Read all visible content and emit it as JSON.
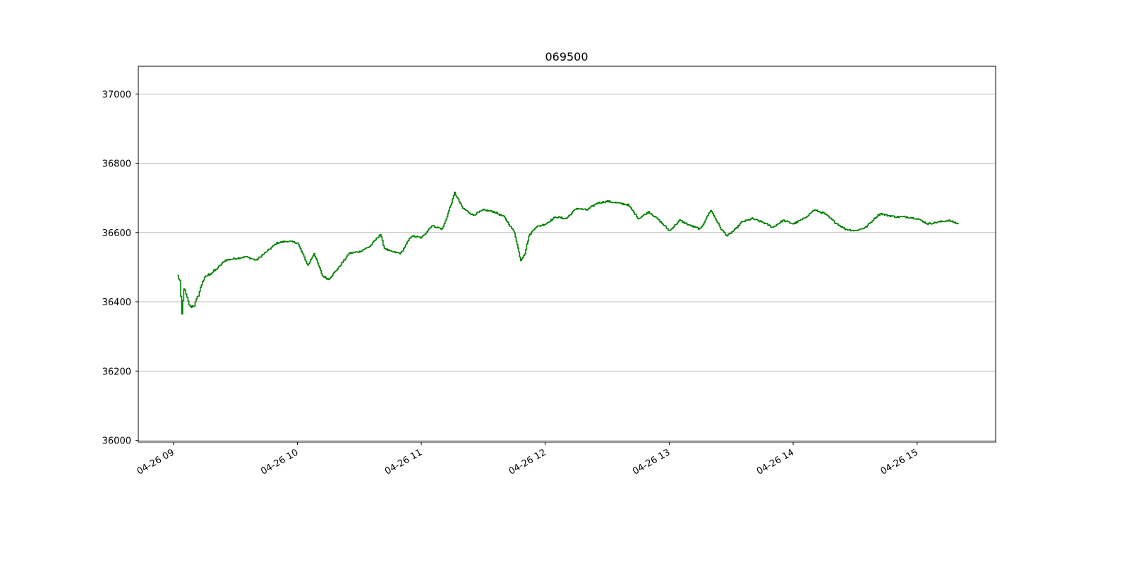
{
  "chart_data": {
    "type": "line",
    "title": "069500",
    "xlabel": "",
    "ylabel": "",
    "x_ticks": [
      "04-26 09",
      "04-26 10",
      "04-26 11",
      "04-26 12",
      "04-26 13",
      "04-26 14",
      "04-26 15"
    ],
    "y_ticks": [
      "36000",
      "36200",
      "36400",
      "36600",
      "36800",
      "37000"
    ],
    "xlim": [
      "04-26 08:43",
      "04-26 15:38"
    ],
    "ylim": [
      35995,
      37080
    ],
    "grid": "horizontal",
    "line_color": "#008000",
    "series": [
      {
        "x": [
          "09:02",
          "09:03",
          "09:04",
          "09:05",
          "09:06",
          "09:07",
          "09:08",
          "09:10",
          "09:12",
          "09:14",
          "09:16",
          "09:20",
          "09:25",
          "09:30",
          "09:35",
          "09:40",
          "09:45",
          "09:50",
          "09:55",
          "10:00",
          "10:05",
          "10:08",
          "10:12",
          "10:15",
          "10:20",
          "10:25",
          "10:30",
          "10:35",
          "10:40",
          "10:42",
          "10:45",
          "10:50",
          "10:55",
          "11:00",
          "11:05",
          "11:10",
          "11:12",
          "11:15",
          "11:16",
          "11:20",
          "11:25",
          "11:30",
          "11:35",
          "11:40",
          "11:45",
          "11:48",
          "11:50",
          "11:52",
          "11:55",
          "12:00",
          "12:05",
          "12:10",
          "12:15",
          "12:20",
          "12:25",
          "12:30",
          "12:35",
          "12:40",
          "12:45",
          "12:50",
          "12:55",
          "13:00",
          "13:05",
          "13:10",
          "13:15",
          "13:20",
          "13:25",
          "13:28",
          "13:32",
          "13:35",
          "13:40",
          "13:45",
          "13:50",
          "13:55",
          "14:00",
          "14:05",
          "14:10",
          "14:15",
          "14:20",
          "14:25",
          "14:30",
          "14:35",
          "14:40",
          "14:42",
          "14:45",
          "14:50",
          "14:55",
          "15:00",
          "15:05",
          "15:10",
          "15:15",
          "15:20"
        ],
        "y": [
          36475,
          36460,
          36363,
          36440,
          36420,
          36400,
          36385,
          36390,
          36420,
          36460,
          36475,
          36490,
          36520,
          36525,
          36530,
          36520,
          36545,
          36570,
          36575,
          36570,
          36505,
          36540,
          36475,
          36465,
          36500,
          36540,
          36545,
          36560,
          36595,
          36555,
          36545,
          36540,
          36590,
          36585,
          36620,
          36610,
          36640,
          36695,
          36715,
          36670,
          36650,
          36665,
          36660,
          36645,
          36600,
          36520,
          36540,
          36590,
          36615,
          36625,
          36645,
          36640,
          36670,
          36665,
          36685,
          36690,
          36685,
          36680,
          36640,
          36660,
          36635,
          36605,
          36635,
          36620,
          36610,
          36665,
          36610,
          36590,
          36610,
          36630,
          36640,
          36630,
          36615,
          36635,
          36625,
          36640,
          36665,
          36655,
          36630,
          36610,
          36605,
          36615,
          36645,
          36655,
          36650,
          36645,
          36645,
          36640,
          36625,
          36630,
          36635,
          36625
        ]
      }
    ]
  }
}
